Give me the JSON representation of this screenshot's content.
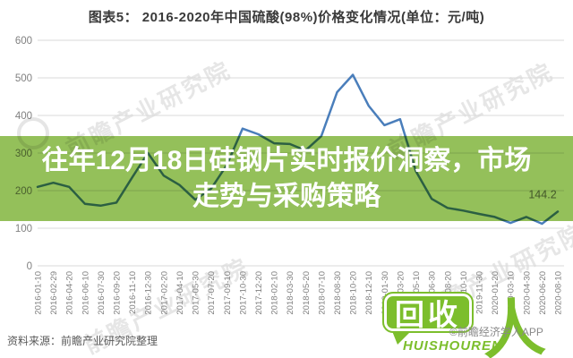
{
  "chart": {
    "title": "图表5： 2016-2020年中国硫酸(98%)价格变化情况(单位：元/吨)",
    "source_note": "资料来源：前瞻产业研究院整理",
    "watermark_text": "前瞻产业研究院",
    "colors": {
      "line": "#4A7EBB",
      "grid": "#D9D9D9",
      "axis_text": "#808080"
    }
  },
  "chart_data": {
    "type": "line",
    "title": "2016-2020年中国硫酸(98%)价格变化情况",
    "unit": "元/吨",
    "xlabel": "",
    "ylabel": "",
    "ylim": [
      0,
      600
    ],
    "y_ticks": [
      600,
      500,
      400,
      300,
      200,
      100,
      0
    ],
    "grid": true,
    "legend_position": "none",
    "categories": [
      "2016-01-10",
      "2016-02-29",
      "2016-04-20",
      "2016-06-10",
      "2016-07-30",
      "2016-09-20",
      "2016-11-10",
      "2016-12-30",
      "2017-02-20",
      "2017-04-10",
      "2017-05-30",
      "2017-07-20",
      "2017-09-10",
      "2017-10-30",
      "2017-12-20",
      "2018-02-10",
      "2018-03-30",
      "2018-05-20",
      "2018-07-10",
      "2018-08-30",
      "2018-10-20",
      "2018-12-10",
      "2019-01-30",
      "2019-03-20",
      "2019-05-10",
      "2019-06-30",
      "2019-08-20",
      "2019-10-10",
      "2019-11-30",
      "2020-01-20",
      "2020-03-10",
      "2020-04-30",
      "2020-06-20",
      "2020-08-10"
    ],
    "series": [
      {
        "name": "中国硫酸(98%)价格(元/吨)",
        "values": [
          210,
          221,
          210,
          165,
          160,
          168,
          235,
          300,
          240,
          215,
          176,
          205,
          268,
          365,
          350,
          326,
          324,
          307,
          345,
          462,
          508,
          426,
          374,
          390,
          252,
          178,
          154,
          147,
          138,
          130,
          114,
          130,
          112,
          144.2
        ]
      }
    ],
    "annotations": [
      {
        "text": "144.2",
        "position": "line-end"
      }
    ]
  },
  "overlay": {
    "headline_lines": [
      "往年12月18日硅钢片实时报价洞察，市场",
      "走势与采购策略"
    ],
    "band_color": "#94C05A",
    "text_color": "#FFFFFF"
  },
  "branding": {
    "bubble_text": "回收",
    "person_glyph": "人",
    "romanized": "HUISHOUREN",
    "credit": "©前瞻经济学人APP",
    "green": "#7CBE2C"
  }
}
